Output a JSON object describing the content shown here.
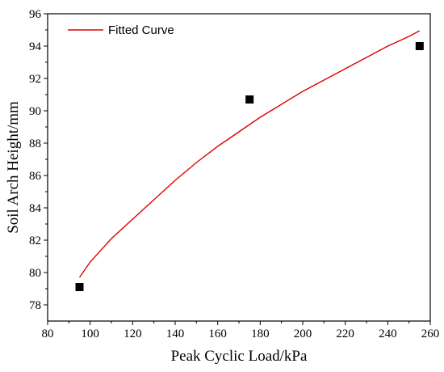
{
  "chart_data": {
    "type": "scatter",
    "xlabel": "Peak Cyclic Load/kPa",
    "ylabel": "Soil Arch Height/mm",
    "xlim": [
      80,
      260
    ],
    "ylim": [
      77,
      96
    ],
    "xticks": [
      80,
      100,
      120,
      140,
      160,
      180,
      200,
      220,
      240,
      260
    ],
    "yticks": [
      78,
      80,
      82,
      84,
      86,
      88,
      90,
      92,
      94,
      96
    ],
    "grid": false,
    "legend_position": "top-left",
    "series": [
      {
        "kind": "scatter",
        "marker": "square",
        "color": "#000000",
        "points": [
          {
            "x": 95,
            "y": 79.1
          },
          {
            "x": 175,
            "y": 90.7
          },
          {
            "x": 255,
            "y": 94.0
          }
        ]
      },
      {
        "kind": "line",
        "name": "Fitted Curve",
        "color": "#e00000",
        "points": [
          {
            "x": 95,
            "y": 79.7
          },
          {
            "x": 100,
            "y": 80.65
          },
          {
            "x": 110,
            "y": 82.1
          },
          {
            "x": 120,
            "y": 83.3
          },
          {
            "x": 130,
            "y": 84.5
          },
          {
            "x": 140,
            "y": 85.7
          },
          {
            "x": 150,
            "y": 86.8
          },
          {
            "x": 160,
            "y": 87.8
          },
          {
            "x": 170,
            "y": 88.7
          },
          {
            "x": 180,
            "y": 89.6
          },
          {
            "x": 190,
            "y": 90.4
          },
          {
            "x": 200,
            "y": 91.2
          },
          {
            "x": 210,
            "y": 91.9
          },
          {
            "x": 220,
            "y": 92.6
          },
          {
            "x": 230,
            "y": 93.3
          },
          {
            "x": 240,
            "y": 94.0
          },
          {
            "x": 250,
            "y": 94.6
          },
          {
            "x": 255,
            "y": 94.95
          }
        ]
      }
    ]
  }
}
